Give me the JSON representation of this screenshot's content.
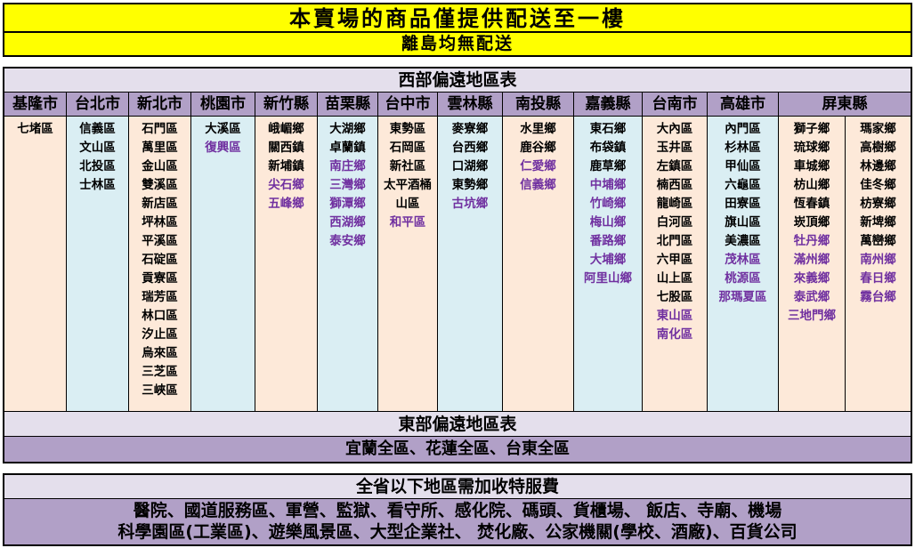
{
  "banners": {
    "line1": "本賣場的商品僅提供配送至一樓",
    "line2": "離島均無配送"
  },
  "west_table": {
    "title": "西部偏遠地區表",
    "columns": [
      {
        "header": "基隆市",
        "items": [
          {
            "name": "七堵區",
            "highlighted": false
          }
        ]
      },
      {
        "header": "台北市",
        "items": [
          {
            "name": "信義區",
            "highlighted": false
          },
          {
            "name": "文山區",
            "highlighted": false
          },
          {
            "name": "北投區",
            "highlighted": false
          },
          {
            "name": "士林區",
            "highlighted": false
          }
        ]
      },
      {
        "header": "新北市",
        "items": [
          {
            "name": "石門區",
            "highlighted": false
          },
          {
            "name": "萬里區",
            "highlighted": false
          },
          {
            "name": "金山區",
            "highlighted": false
          },
          {
            "name": "雙溪區",
            "highlighted": false
          },
          {
            "name": "新店區",
            "highlighted": false
          },
          {
            "name": "坪林區",
            "highlighted": false
          },
          {
            "name": "平溪區",
            "highlighted": false
          },
          {
            "name": "石碇區",
            "highlighted": false
          },
          {
            "name": "貢寮區",
            "highlighted": false
          },
          {
            "name": "瑞芳區",
            "highlighted": false
          },
          {
            "name": "林口區",
            "highlighted": false
          },
          {
            "name": "汐止區",
            "highlighted": false
          },
          {
            "name": "烏來區",
            "highlighted": false
          },
          {
            "name": "三芝區",
            "highlighted": false
          },
          {
            "name": "三峽區",
            "highlighted": false
          }
        ]
      },
      {
        "header": "桃園市",
        "items": [
          {
            "name": "大溪區",
            "highlighted": false
          },
          {
            "name": "復興區",
            "highlighted": true
          }
        ]
      },
      {
        "header": "新竹縣",
        "items": [
          {
            "name": "峨嵋鄉",
            "highlighted": false
          },
          {
            "name": "關西鎮",
            "highlighted": false
          },
          {
            "name": "新埔鎮",
            "highlighted": false
          },
          {
            "name": "尖石鄉",
            "highlighted": true
          },
          {
            "name": "五峰鄉",
            "highlighted": true
          }
        ]
      },
      {
        "header": "苗栗縣",
        "items": [
          {
            "name": "大湖鄉",
            "highlighted": false
          },
          {
            "name": "卓蘭鎮",
            "highlighted": false
          },
          {
            "name": "南庄鄉",
            "highlighted": true
          },
          {
            "name": "三灣鄉",
            "highlighted": true
          },
          {
            "name": "獅潭鄉",
            "highlighted": true
          },
          {
            "name": "西湖鄉",
            "highlighted": true
          },
          {
            "name": "泰安鄉",
            "highlighted": true
          }
        ]
      },
      {
        "header": "台中市",
        "items": [
          {
            "name": "東勢區",
            "highlighted": false
          },
          {
            "name": "石岡區",
            "highlighted": false
          },
          {
            "name": "新社區",
            "highlighted": false
          },
          {
            "name": "太平酒桶山區",
            "highlighted": false
          },
          {
            "name": "和平區",
            "highlighted": true
          }
        ]
      },
      {
        "header": "雲林縣",
        "items": [
          {
            "name": "麥寮鄉",
            "highlighted": false
          },
          {
            "name": "台西鄉",
            "highlighted": false
          },
          {
            "name": "口湖鄉",
            "highlighted": false
          },
          {
            "name": "東勢鄉",
            "highlighted": false
          },
          {
            "name": "古坑鄉",
            "highlighted": true
          }
        ]
      },
      {
        "header": "南投縣",
        "items": [
          {
            "name": "水里鄉",
            "highlighted": false
          },
          {
            "name": "鹿谷鄉",
            "highlighted": false
          },
          {
            "name": "仁愛鄉",
            "highlighted": true
          },
          {
            "name": "信義鄉",
            "highlighted": true
          }
        ]
      },
      {
        "header": "嘉義縣",
        "items": [
          {
            "name": "東石鄉",
            "highlighted": false
          },
          {
            "name": "布袋鎮",
            "highlighted": false
          },
          {
            "name": "鹿草鄉",
            "highlighted": false
          },
          {
            "name": "中埔鄉",
            "highlighted": true
          },
          {
            "name": "竹崎鄉",
            "highlighted": true
          },
          {
            "name": "梅山鄉",
            "highlighted": true
          },
          {
            "name": "番路鄉",
            "highlighted": true
          },
          {
            "name": "大埔鄉",
            "highlighted": true
          },
          {
            "name": "阿里山鄉",
            "highlighted": true
          }
        ]
      },
      {
        "header": "台南市",
        "items": [
          {
            "name": "大內區",
            "highlighted": false
          },
          {
            "name": "玉井區",
            "highlighted": false
          },
          {
            "name": "左鎮區",
            "highlighted": false
          },
          {
            "name": "楠西區",
            "highlighted": false
          },
          {
            "name": "龍崎區",
            "highlighted": false
          },
          {
            "name": "白河區",
            "highlighted": false
          },
          {
            "name": "北門區",
            "highlighted": false
          },
          {
            "name": "六甲區",
            "highlighted": false
          },
          {
            "name": "山上區",
            "highlighted": false
          },
          {
            "name": "七股區",
            "highlighted": false
          },
          {
            "name": "東山區",
            "highlighted": true
          },
          {
            "name": "南化區",
            "highlighted": true
          }
        ]
      },
      {
        "header": "高雄市",
        "items": [
          {
            "name": "內門區",
            "highlighted": false
          },
          {
            "name": "杉林區",
            "highlighted": false
          },
          {
            "name": "甲仙區",
            "highlighted": false
          },
          {
            "name": "六龜區",
            "highlighted": false
          },
          {
            "name": "田寮區",
            "highlighted": false
          },
          {
            "name": "旗山區",
            "highlighted": false
          },
          {
            "name": "美濃區",
            "highlighted": false
          },
          {
            "name": "茂林區",
            "highlighted": true
          },
          {
            "name": "桃源區",
            "highlighted": true
          },
          {
            "name": "那瑪夏區",
            "highlighted": true
          }
        ]
      },
      {
        "header": "屏東縣",
        "sub_columns": [
          [
            {
              "name": "獅子鄉",
              "highlighted": false
            },
            {
              "name": "琉球鄉",
              "highlighted": false
            },
            {
              "name": "車城鄉",
              "highlighted": false
            },
            {
              "name": "枋山鄉",
              "highlighted": false
            },
            {
              "name": "恆春鎮",
              "highlighted": false
            },
            {
              "name": "崁頂鄉",
              "highlighted": false
            },
            {
              "name": "牡丹鄉",
              "highlighted": true
            },
            {
              "name": "滿州鄉",
              "highlighted": true
            },
            {
              "name": "來義鄉",
              "highlighted": true
            },
            {
              "name": "泰武鄉",
              "highlighted": true
            },
            {
              "name": "三地門鄉",
              "highlighted": true
            }
          ],
          [
            {
              "name": "瑪家鄉",
              "highlighted": false
            },
            {
              "name": "高樹鄉",
              "highlighted": false
            },
            {
              "name": "林邊鄉",
              "highlighted": false
            },
            {
              "name": "佳冬鄉",
              "highlighted": false
            },
            {
              "name": "枋寮鄉",
              "highlighted": false
            },
            {
              "name": "新埤鄉",
              "highlighted": false
            },
            {
              "name": "萬巒鄉",
              "highlighted": false
            },
            {
              "name": "南州鄉",
              "highlighted": true
            },
            {
              "name": "春日鄉",
              "highlighted": true
            },
            {
              "name": "霧台鄉",
              "highlighted": true
            }
          ]
        ]
      }
    ]
  },
  "east_table": {
    "title": "東部偏遠地區表",
    "regions": "宜蘭全區、花蓮全區、台東全區"
  },
  "fee_section": {
    "title": "全省以下地區需加收特服費",
    "lines": [
      "醫院、國道服務區、軍營、監獄、看守所、感化院、碼頭、貨櫃場、 飯店、寺廟、機場",
      "科學園區(工業區)、遊樂風景區、大型企業社、 焚化廠、公家機關(學校、酒廠)、百貨公司"
    ]
  },
  "colors": {
    "banner_bg": "#FFFF00",
    "header_bg": "#B1A0C7",
    "section_title_bg": "#E4DFEC",
    "col_bg_peach": "#FDE9D9",
    "col_bg_blue": "#DAEEF3",
    "highlight_text": "#7030A0",
    "text": "#000000"
  }
}
